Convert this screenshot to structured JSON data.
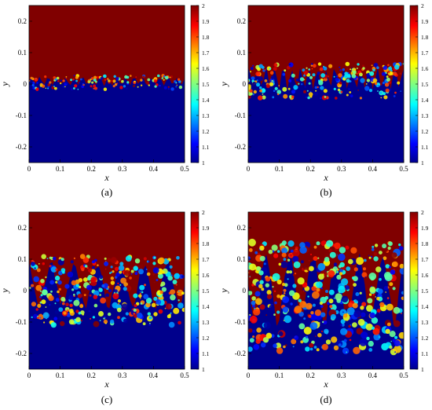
{
  "figure": {
    "panels": [
      {
        "caption": "(a)",
        "stage": 1
      },
      {
        "caption": "(b)",
        "stage": 2
      },
      {
        "caption": "(c)",
        "stage": 3
      },
      {
        "caption": "(d)",
        "stage": 4
      }
    ],
    "xlabel": "x",
    "ylabel": "y"
  },
  "chart_data": {
    "type": "heatmap",
    "xlim": [
      0,
      0.5
    ],
    "ylim": [
      -0.25,
      0.25
    ],
    "xticks": [
      "0",
      "0.1",
      "0.2",
      "0.3",
      "0.4",
      "0.5"
    ],
    "yticks": [
      "0.2",
      "0.1",
      "0",
      "-0.1",
      "-0.2"
    ],
    "colorbar": {
      "min": 1,
      "max": 2,
      "ticks": [
        "2",
        "1.9",
        "1.8",
        "1.7",
        "1.6",
        "1.5",
        "1.4",
        "1.3",
        "1.2",
        "1.1",
        "1"
      ]
    },
    "colors": {
      "dark_red": "#800000",
      "dark_blue": "#00008c"
    }
  }
}
